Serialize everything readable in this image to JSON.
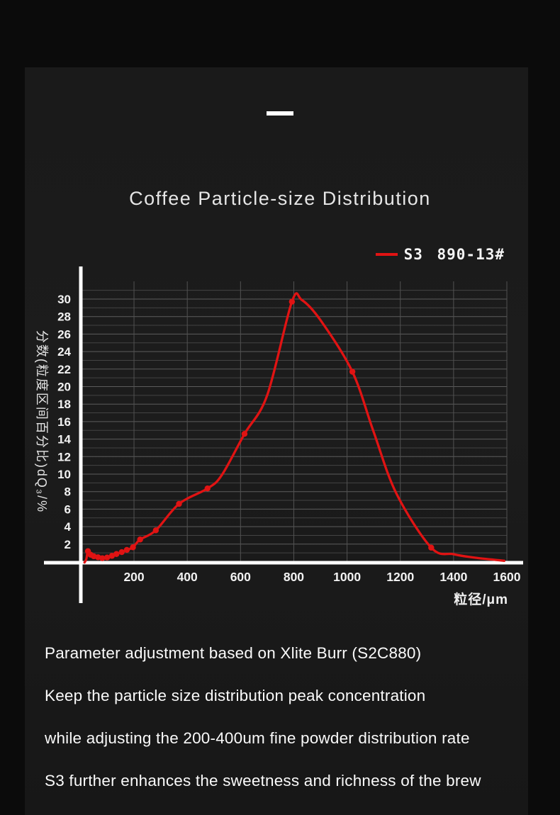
{
  "chart_data": {
    "type": "line",
    "title": "Coffee Particle-size Distribution",
    "xlabel": "粒径/μm",
    "ylabel": "分数(粒度区间百分比)dQ₃/%",
    "xlim": [
      0,
      1650
    ],
    "ylim": [
      0,
      31
    ],
    "x_ticks": [
      200,
      400,
      600,
      800,
      1000,
      1200,
      1400,
      1600
    ],
    "y_ticks": [
      2,
      4,
      6,
      8,
      10,
      12,
      14,
      16,
      18,
      20,
      22,
      24,
      26,
      28,
      30
    ],
    "grid": {
      "horizontal_every": 1,
      "vertical_every_um": 200,
      "color": "#4a4a4a"
    },
    "legend_position": "top-right",
    "series": [
      {
        "name": "S3 890-13#",
        "color": "#e01313",
        "comment": "points are [particle_size_um, percent, marker_dot]",
        "points": [
          [
            14,
            -0.1,
            0
          ],
          [
            21,
            0.3,
            0
          ],
          [
            27,
            1.2,
            1
          ],
          [
            37,
            0.79,
            1
          ],
          [
            49,
            0.61,
            1
          ],
          [
            65,
            0.5,
            1
          ],
          [
            81,
            0.39,
            1
          ],
          [
            99,
            0.47,
            1
          ],
          [
            117,
            0.66,
            1
          ],
          [
            134,
            0.87,
            1
          ],
          [
            154,
            1.09,
            1
          ],
          [
            173,
            1.34,
            1
          ],
          [
            196,
            1.64,
            1
          ],
          [
            223,
            2.53,
            1
          ],
          [
            282,
            3.58,
            1
          ],
          [
            369,
            6.6,
            1
          ],
          [
            476,
            8.36,
            1
          ],
          [
            530,
            9.9,
            0
          ],
          [
            615,
            14.6,
            1
          ],
          [
            700,
            19.0,
            0
          ],
          [
            793,
            29.7,
            1
          ],
          [
            830,
            29.9,
            0
          ],
          [
            900,
            27.6,
            0
          ],
          [
            1020,
            21.7,
            1
          ],
          [
            1100,
            14.8,
            0
          ],
          [
            1185,
            7.8,
            0
          ],
          [
            1316,
            1.6,
            1
          ],
          [
            1400,
            0.85,
            0
          ],
          [
            1480,
            0.45,
            0
          ],
          [
            1590,
            0.1,
            0
          ]
        ]
      }
    ]
  },
  "notes": {
    "lines": [
      "Parameter adjustment based on Xlite Burr (S2C880)",
      "Keep the particle size distribution peak concentration",
      "while adjusting the 200-400um fine powder distribution rate",
      "S3 further enhances the sweetness and richness of the brew"
    ]
  }
}
